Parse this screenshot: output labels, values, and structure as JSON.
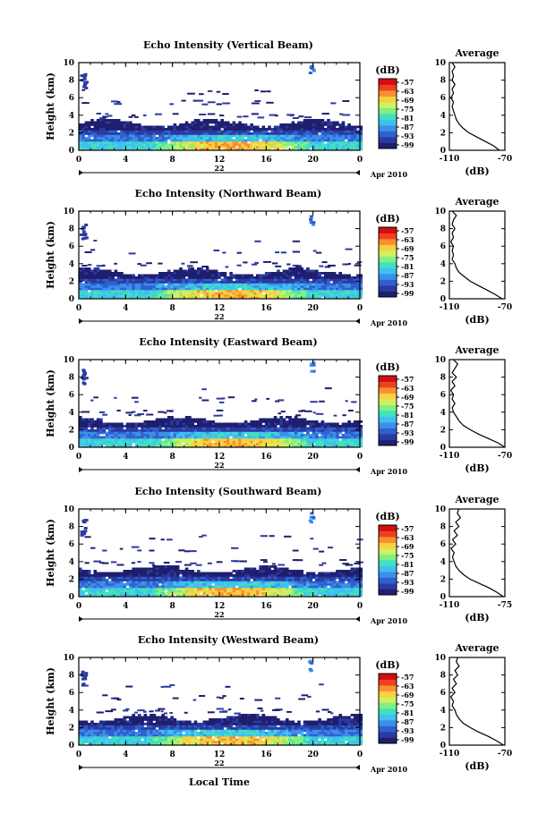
{
  "figure": {
    "x_axis_label": "Local Time",
    "date_suffix": "Apr 2010",
    "day_label": "22"
  },
  "chart_data": [
    {
      "type": "heatmap",
      "title": "Echo Intensity (Vertical Beam)",
      "ylabel": "Height (km)",
      "xlabel": "Local Time",
      "x_ticks": [
        "0",
        "4",
        "8",
        "12",
        "16",
        "20",
        "0"
      ],
      "y_ticks": [
        "0",
        "2",
        "4",
        "6",
        "8",
        "10"
      ],
      "xlim": [
        0,
        24
      ],
      "ylim": [
        0,
        10
      ],
      "colorbar": {
        "unit": "(dB)",
        "ticks": [
          "-57",
          "-63",
          "-69",
          "-75",
          "-81",
          "-87",
          "-93",
          "-99"
        ]
      },
      "profile": {
        "title": "Average",
        "xlabel": "(dB)",
        "x_ticks": [
          "-110",
          "-70"
        ],
        "y_ticks": [
          "0",
          "2",
          "4",
          "6",
          "8",
          "10"
        ],
        "xlim": [
          -110,
          -70
        ],
        "points": [
          [
            -74,
            0
          ],
          [
            -78,
            0.5
          ],
          [
            -84,
            1
          ],
          [
            -90,
            1.5
          ],
          [
            -96,
            2
          ],
          [
            -100,
            2.5
          ],
          [
            -103,
            3
          ],
          [
            -105,
            3.5
          ],
          [
            -106,
            4
          ],
          [
            -107,
            4.5
          ],
          [
            -108,
            5
          ],
          [
            -107,
            5.5
          ],
          [
            -109,
            6
          ],
          [
            -107,
            6.5
          ],
          [
            -108,
            7
          ],
          [
            -106,
            7.5
          ],
          [
            -108,
            8
          ],
          [
            -107,
            8.5
          ],
          [
            -108,
            9
          ],
          [
            -106,
            9.5
          ],
          [
            -108,
            10
          ]
        ]
      }
    },
    {
      "type": "heatmap",
      "title": "Echo Intensity (Northward Beam)",
      "ylabel": "Height (km)",
      "xlabel": "Local Time",
      "x_ticks": [
        "0",
        "4",
        "8",
        "12",
        "16",
        "20",
        "0"
      ],
      "y_ticks": [
        "0",
        "2",
        "4",
        "6",
        "8",
        "10"
      ],
      "xlim": [
        0,
        24
      ],
      "ylim": [
        0,
        10
      ],
      "colorbar": {
        "unit": "(dB)",
        "ticks": [
          "-57",
          "-63",
          "-69",
          "-75",
          "-81",
          "-87",
          "-93",
          "-99"
        ]
      },
      "profile": {
        "title": "Average",
        "xlabel": "(dB)",
        "x_ticks": [
          "-110",
          "-70"
        ],
        "y_ticks": [
          "0",
          "2",
          "4",
          "6",
          "8",
          "10"
        ],
        "xlim": [
          -110,
          -70
        ],
        "points": [
          [
            -72,
            0
          ],
          [
            -77,
            0.5
          ],
          [
            -83,
            1
          ],
          [
            -89,
            1.5
          ],
          [
            -95,
            2
          ],
          [
            -99,
            2.5
          ],
          [
            -103,
            3
          ],
          [
            -105,
            3.5
          ],
          [
            -106,
            4
          ],
          [
            -108,
            4.5
          ],
          [
            -107,
            5
          ],
          [
            -108,
            5.5
          ],
          [
            -107,
            6
          ],
          [
            -109,
            6.5
          ],
          [
            -107,
            7
          ],
          [
            -108,
            7.5
          ],
          [
            -106,
            8
          ],
          [
            -108,
            8.5
          ],
          [
            -107,
            9
          ],
          [
            -105,
            9.5
          ],
          [
            -108,
            10
          ]
        ]
      }
    },
    {
      "type": "heatmap",
      "title": "Echo Intensity (Eastward Beam)",
      "ylabel": "Height (km)",
      "xlabel": "Local Time",
      "x_ticks": [
        "0",
        "4",
        "8",
        "12",
        "16",
        "20",
        "0"
      ],
      "y_ticks": [
        "0",
        "2",
        "4",
        "6",
        "8",
        "10"
      ],
      "xlim": [
        0,
        24
      ],
      "ylim": [
        0,
        10
      ],
      "colorbar": {
        "unit": "(dB)",
        "ticks": [
          "-57",
          "-63",
          "-69",
          "-75",
          "-81",
          "-87",
          "-93",
          "-99"
        ]
      },
      "profile": {
        "title": "Average",
        "xlabel": "(dB)",
        "x_ticks": [
          "-110",
          "-70"
        ],
        "y_ticks": [
          "0",
          "2",
          "4",
          "6",
          "8",
          "10"
        ],
        "xlim": [
          -110,
          -70
        ],
        "points": [
          [
            -70,
            0
          ],
          [
            -75,
            0.5
          ],
          [
            -82,
            1
          ],
          [
            -89,
            1.5
          ],
          [
            -95,
            2
          ],
          [
            -100,
            2.5
          ],
          [
            -103,
            3
          ],
          [
            -105,
            3.5
          ],
          [
            -107,
            4
          ],
          [
            -108,
            4.5
          ],
          [
            -106,
            5
          ],
          [
            -108,
            5.5
          ],
          [
            -107,
            6
          ],
          [
            -109,
            6.5
          ],
          [
            -106,
            7
          ],
          [
            -108,
            7.5
          ],
          [
            -105,
            8
          ],
          [
            -108,
            8.5
          ],
          [
            -106,
            9
          ],
          [
            -104,
            9.5
          ],
          [
            -107,
            10
          ]
        ]
      }
    },
    {
      "type": "heatmap",
      "title": "Echo Intensity (Southward Beam)",
      "ylabel": "Height (km)",
      "xlabel": "Local Time",
      "x_ticks": [
        "0",
        "4",
        "8",
        "12",
        "16",
        "20",
        "0"
      ],
      "y_ticks": [
        "0",
        "2",
        "4",
        "6",
        "8",
        "10"
      ],
      "xlim": [
        0,
        24
      ],
      "ylim": [
        0,
        10
      ],
      "colorbar": {
        "unit": "(dB)",
        "ticks": [
          "-57",
          "-63",
          "-69",
          "-75",
          "-81",
          "-87",
          "-93",
          "-99"
        ]
      },
      "profile": {
        "title": "Average",
        "xlabel": "(dB)",
        "x_ticks": [
          "-110",
          "-75"
        ],
        "y_ticks": [
          "0",
          "2",
          "4",
          "6",
          "8",
          "10"
        ],
        "xlim": [
          -110,
          -75
        ],
        "points": [
          [
            -76,
            0
          ],
          [
            -80,
            0.5
          ],
          [
            -85,
            1
          ],
          [
            -91,
            1.5
          ],
          [
            -97,
            2
          ],
          [
            -101,
            2.5
          ],
          [
            -104,
            3
          ],
          [
            -106,
            3.5
          ],
          [
            -107,
            4
          ],
          [
            -108,
            4.5
          ],
          [
            -107,
            5
          ],
          [
            -109,
            5.5
          ],
          [
            -106,
            6
          ],
          [
            -108,
            6.5
          ],
          [
            -105,
            7
          ],
          [
            -107,
            7.5
          ],
          [
            -104,
            8
          ],
          [
            -106,
            8.5
          ],
          [
            -103,
            9
          ],
          [
            -105,
            9.5
          ],
          [
            -104,
            10
          ]
        ]
      }
    },
    {
      "type": "heatmap",
      "title": "Echo Intensity (Westward Beam)",
      "ylabel": "Height (km)",
      "xlabel": "Local Time",
      "x_ticks": [
        "0",
        "4",
        "8",
        "12",
        "16",
        "20",
        "0"
      ],
      "y_ticks": [
        "0",
        "2",
        "4",
        "6",
        "8",
        "10"
      ],
      "xlim": [
        0,
        24
      ],
      "ylim": [
        0,
        10
      ],
      "colorbar": {
        "unit": "(dB)",
        "ticks": [
          "-57",
          "-63",
          "-69",
          "-75",
          "-81",
          "-87",
          "-93",
          "-99"
        ]
      },
      "profile": {
        "title": "Average",
        "xlabel": "(dB)",
        "x_ticks": [
          "-110",
          "-70"
        ],
        "y_ticks": [
          "0",
          "2",
          "4",
          "6",
          "8",
          "10"
        ],
        "xlim": [
          -110,
          -70
        ],
        "points": [
          [
            -71,
            0
          ],
          [
            -76,
            0.5
          ],
          [
            -82,
            1
          ],
          [
            -89,
            1.5
          ],
          [
            -95,
            2
          ],
          [
            -100,
            2.5
          ],
          [
            -103,
            3
          ],
          [
            -105,
            3.5
          ],
          [
            -106,
            4
          ],
          [
            -108,
            4.5
          ],
          [
            -107,
            5
          ],
          [
            -109,
            5.5
          ],
          [
            -106,
            6
          ],
          [
            -108,
            6.5
          ],
          [
            -105,
            7
          ],
          [
            -107,
            7.5
          ],
          [
            -104,
            8
          ],
          [
            -106,
            8.5
          ],
          [
            -103,
            9
          ],
          [
            -105,
            9.5
          ],
          [
            -104,
            10
          ]
        ]
      }
    }
  ],
  "colors": {
    "colormap": [
      "#1f1f6e",
      "#2b3aa0",
      "#3060d0",
      "#3a90e8",
      "#40c0f0",
      "#40e0c0",
      "#80f080",
      "#d0f060",
      "#f8d040",
      "#f89030",
      "#f04020",
      "#d01010"
    ],
    "background": "#ffffff",
    "axis": "#000000"
  }
}
